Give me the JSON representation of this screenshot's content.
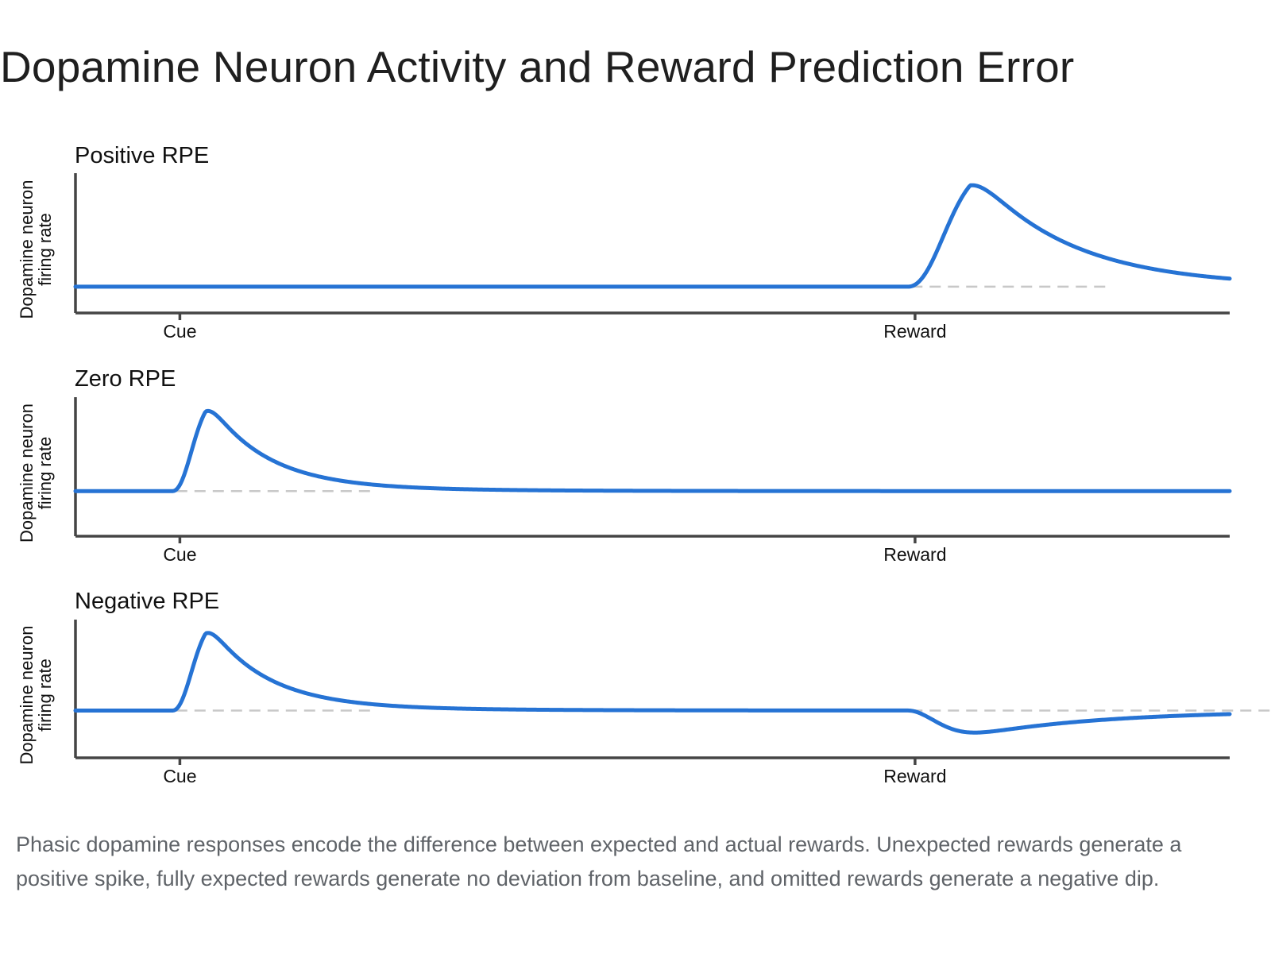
{
  "page_title": "Dopamine Neuron Activity and Reward Prediction Error",
  "caption": "Phasic dopamine responses encode the difference between expected and actual rewards. Unexpected rewards generate a positive spike, fully expected rewards generate no deviation from baseline, and omitted rewards generate a negative dip.",
  "colors": {
    "series": "#2673d4",
    "baseline": "#c8c8c8",
    "axis": "#454545",
    "caption": "#5f6368"
  },
  "chart_data": [
    {
      "type": "line",
      "title": "Positive RPE",
      "ylabel": "Dopamine neuron firing rate",
      "xticks": [
        {
          "label": "Cue",
          "x": 0
        },
        {
          "label": "Reward",
          "x": 1
        }
      ],
      "xlim": [
        -0.142,
        1.428
      ],
      "ylim": [
        -0.22,
        0.95
      ],
      "baseline": 0,
      "events": [
        {
          "at": "Reward",
          "t": 1,
          "kind": "spike",
          "amplitude": 1.0,
          "peak_offset": 0.05
        }
      ]
    },
    {
      "type": "line",
      "title": "Zero RPE",
      "ylabel": "Dopamine neuron firing rate",
      "xticks": [
        {
          "label": "Cue",
          "x": 0
        },
        {
          "label": "Reward",
          "x": 1
        }
      ],
      "xlim": [
        -0.142,
        1.428
      ],
      "ylim": [
        -0.48,
        1.0
      ],
      "baseline": 0,
      "events": [
        {
          "at": "Cue",
          "t": 0,
          "kind": "spike",
          "amplitude": 1.0,
          "peak_offset": 0.01
        }
      ]
    },
    {
      "type": "line",
      "title": "Negative RPE",
      "ylabel": "Dopamine neuron firing rate",
      "xticks": [
        {
          "label": "Cue",
          "x": 0
        },
        {
          "label": "Reward",
          "x": 1
        }
      ],
      "xlim": [
        -0.142,
        1.428
      ],
      "ylim": [
        -0.52,
        1.0
      ],
      "baseline": 0,
      "events": [
        {
          "at": "Cue",
          "t": 0,
          "kind": "spike",
          "amplitude": 1.0,
          "peak_offset": 0.01
        },
        {
          "at": "Reward",
          "t": 1,
          "kind": "dip",
          "amplitude": -0.4,
          "peak_offset": 0.01
        }
      ]
    }
  ]
}
